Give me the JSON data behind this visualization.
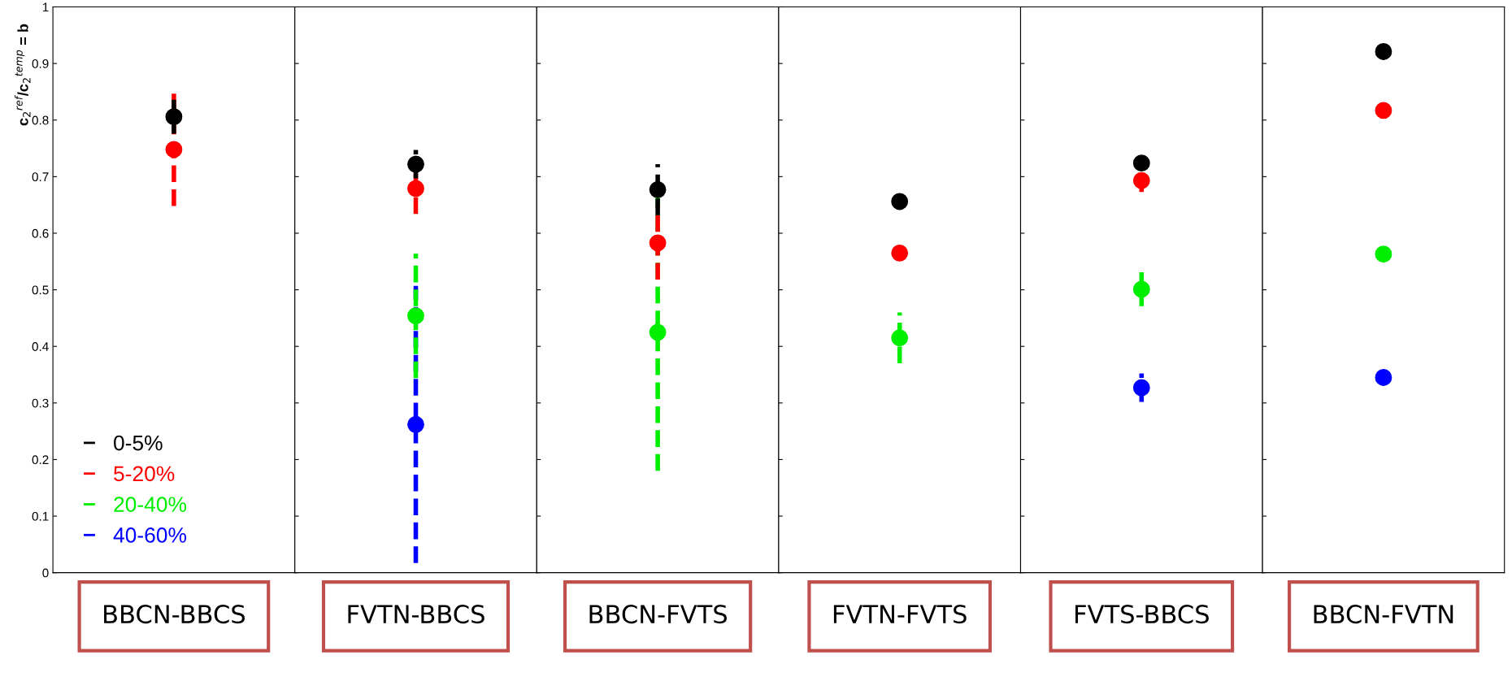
{
  "chart_data": [
    {
      "type": "scatter",
      "categories": [
        "BBCN-BBCS"
      ],
      "ylabel": "c$_{2}$$^{ref}$/c$_{2}$$^{temp}$ = b",
      "ylim": [
        0,
        1
      ],
      "yticks": [
        0,
        0.1,
        0.2,
        0.3,
        0.4,
        0.5,
        0.6,
        0.7,
        0.8,
        0.9,
        1
      ],
      "marker": "circle",
      "line_style": "dashed",
      "legend": "bottom left",
      "grid": false,
      "series": [
        {
          "name": "0-5%",
          "color": "#000000",
          "values": [
            0.806
          ],
          "errors": [
            0.03
          ]
        },
        {
          "name": "5-20%",
          "color": "#ff0000",
          "values": [
            0.748
          ],
          "errors": [
            0.1
          ]
        },
        {
          "name": "20-40%",
          "color": "#00ee00",
          "values": [
            null
          ],
          "errors": [
            null
          ]
        },
        {
          "name": "40-60%",
          "color": "#0000ff",
          "values": [
            null
          ],
          "errors": [
            null
          ]
        }
      ]
    },
    {
      "type": "scatter",
      "categories": [
        "FVTN-BBCS"
      ],
      "ylim": [
        0,
        1
      ],
      "yticks": [
        0,
        0.1,
        0.2,
        0.3,
        0.4,
        0.5,
        0.6,
        0.7,
        0.8,
        0.9,
        1
      ],
      "tick_labels": "x",
      "marker": "circle",
      "line_style": "dashed",
      "grid": false,
      "series": [
        {
          "color": "#000000",
          "values": [
            0.722
          ],
          "errors": [
            0.025
          ]
        },
        {
          "color": "#ff0000",
          "values": [
            0.679
          ],
          "errors": [
            0.045
          ]
        },
        {
          "color": "#00ee00",
          "values": [
            0.454
          ],
          "errors": [
            0.11
          ]
        },
        {
          "color": "#0000ff",
          "values": [
            0.262
          ],
          "errors": [
            0.245
          ]
        }
      ]
    },
    {
      "type": "scatter",
      "categories": [
        "BBCN-FVTS"
      ],
      "ylim": [
        0,
        1
      ],
      "yticks": [
        0,
        0.1,
        0.2,
        0.3,
        0.4,
        0.5,
        0.6,
        0.7,
        0.8,
        0.9,
        1
      ],
      "tick_labels": "x",
      "marker": "circle",
      "line_style": "dashed",
      "grid": false,
      "series": [
        {
          "color": "#000000",
          "values": [
            0.677
          ],
          "errors": [
            0.045
          ]
        },
        {
          "color": "#ff0000",
          "values": [
            0.583
          ],
          "errors": [
            0.065
          ]
        },
        {
          "color": "#00ee00",
          "values": [
            0.425
          ],
          "errors": [
            0.245
          ]
        }
      ]
    },
    {
      "type": "scatter",
      "categories": [
        "FVTN-FVTS"
      ],
      "ylim": [
        0,
        1
      ],
      "yticks": [
        0,
        0.1,
        0.2,
        0.3,
        0.4,
        0.5,
        0.6,
        0.7,
        0.8,
        0.9,
        1
      ],
      "tick_labels": "x",
      "marker": "circle",
      "line_style": "dashed",
      "grid": false,
      "series": [
        {
          "color": "#000000",
          "values": [
            0.656
          ],
          "errors": [
            null
          ]
        },
        {
          "color": "#ff0000",
          "values": [
            0.565
          ],
          "errors": [
            null
          ]
        },
        {
          "color": "#00ee00",
          "values": [
            0.415
          ],
          "errors": [
            0.045
          ]
        }
      ]
    },
    {
      "type": "scatter",
      "categories": [
        "FVTS-BBCS"
      ],
      "ylim": [
        0,
        1
      ],
      "yticks": [
        0,
        0.1,
        0.2,
        0.3,
        0.4,
        0.5,
        0.6,
        0.7,
        0.8,
        0.9,
        1
      ],
      "tick_labels": "x",
      "marker": "circle",
      "line_style": "dashed",
      "grid": false,
      "series": [
        {
          "color": "#000000",
          "values": [
            0.724
          ],
          "errors": [
            null
          ]
        },
        {
          "color": "#ff0000",
          "values": [
            0.693
          ],
          "errors": [
            0.02
          ]
        },
        {
          "color": "#00ee00",
          "values": [
            0.501
          ],
          "errors": [
            0.03
          ]
        },
        {
          "color": "#0000ff",
          "values": [
            0.327
          ],
          "errors": [
            0.025
          ]
        }
      ]
    },
    {
      "type": "scatter",
      "categories": [
        "BBCN-FVTN"
      ],
      "ylim": [
        0,
        1
      ],
      "yticks": [
        0,
        0.1,
        0.2,
        0.3,
        0.4,
        0.5,
        0.6,
        0.7,
        0.8,
        0.9,
        1
      ],
      "tick_labels": "x",
      "marker": "circle",
      "line_style": "dashed",
      "grid": false,
      "series": [
        {
          "color": "#000000",
          "values": [
            0.921
          ],
          "errors": [
            null
          ]
        },
        {
          "color": "#ff0000",
          "values": [
            0.817
          ],
          "errors": [
            null
          ]
        },
        {
          "color": "#00ee00",
          "values": [
            0.563
          ],
          "errors": [
            null
          ]
        },
        {
          "color": "#0000ff",
          "values": [
            0.345
          ],
          "errors": [
            null
          ]
        }
      ]
    }
  ]
}
